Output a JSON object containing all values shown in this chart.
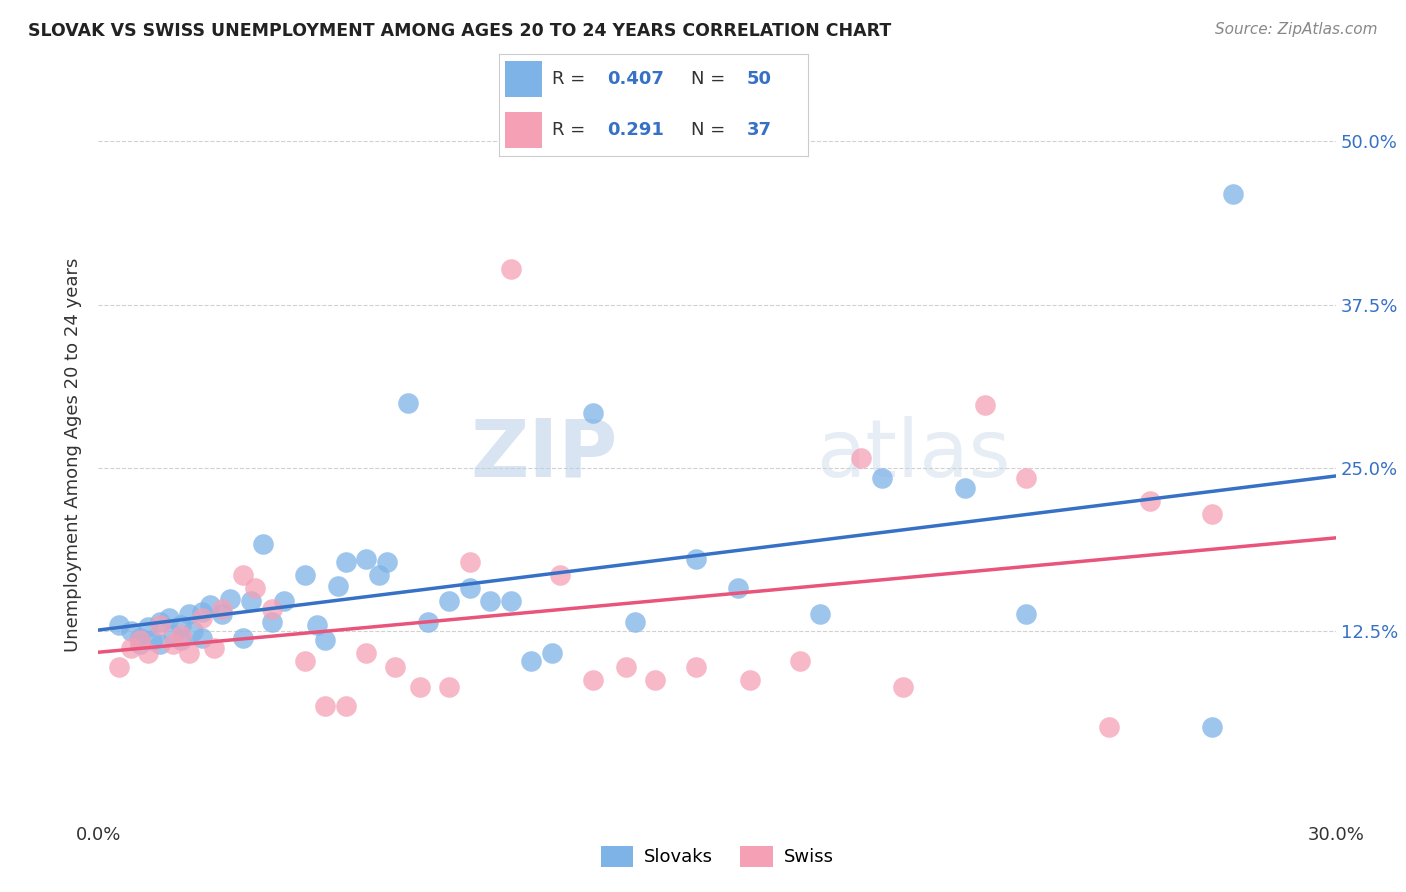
{
  "title": "SLOVAK VS SWISS UNEMPLOYMENT AMONG AGES 20 TO 24 YEARS CORRELATION CHART",
  "source": "Source: ZipAtlas.com",
  "ylabel": "Unemployment Among Ages 20 to 24 years",
  "xlim": [
    0.0,
    0.3
  ],
  "ylim": [
    -0.02,
    0.54
  ],
  "xticks": [
    0.0,
    0.05,
    0.1,
    0.15,
    0.2,
    0.25,
    0.3
  ],
  "xtick_labels": [
    "0.0%",
    "",
    "",
    "",
    "",
    "",
    "30.0%"
  ],
  "ytick_labels": [
    "",
    "12.5%",
    "25.0%",
    "37.5%",
    "50.0%"
  ],
  "yticks": [
    0.0,
    0.125,
    0.25,
    0.375,
    0.5
  ],
  "blue_color": "#7EB3E8",
  "pink_color": "#F5A0B5",
  "blue_line_color": "#3671C6",
  "pink_line_color": "#E8547A",
  "legend_r1": "0.407",
  "legend_n1": "50",
  "legend_r2": "0.291",
  "legend_n2": "37",
  "watermark_zip": "ZIP",
  "watermark_atlas": "atlas",
  "blue_scatter_x": [
    0.005,
    0.008,
    0.01,
    0.01,
    0.012,
    0.013,
    0.015,
    0.015,
    0.017,
    0.018,
    0.02,
    0.02,
    0.022,
    0.023,
    0.025,
    0.025,
    0.027,
    0.03,
    0.032,
    0.035,
    0.037,
    0.04,
    0.042,
    0.045,
    0.05,
    0.053,
    0.055,
    0.058,
    0.06,
    0.065,
    0.068,
    0.07,
    0.075,
    0.08,
    0.085,
    0.09,
    0.095,
    0.1,
    0.105,
    0.11,
    0.12,
    0.13,
    0.145,
    0.155,
    0.175,
    0.19,
    0.21,
    0.225,
    0.27,
    0.275
  ],
  "blue_scatter_y": [
    0.13,
    0.125,
    0.12,
    0.115,
    0.128,
    0.118,
    0.132,
    0.115,
    0.135,
    0.122,
    0.13,
    0.118,
    0.138,
    0.125,
    0.14,
    0.12,
    0.145,
    0.138,
    0.15,
    0.12,
    0.148,
    0.192,
    0.132,
    0.148,
    0.168,
    0.13,
    0.118,
    0.16,
    0.178,
    0.18,
    0.168,
    0.178,
    0.3,
    0.132,
    0.148,
    0.158,
    0.148,
    0.148,
    0.102,
    0.108,
    0.292,
    0.132,
    0.18,
    0.158,
    0.138,
    0.242,
    0.235,
    0.138,
    0.052,
    0.46
  ],
  "pink_scatter_x": [
    0.005,
    0.008,
    0.01,
    0.012,
    0.015,
    0.018,
    0.02,
    0.022,
    0.025,
    0.028,
    0.03,
    0.035,
    0.038,
    0.042,
    0.05,
    0.055,
    0.06,
    0.065,
    0.072,
    0.078,
    0.085,
    0.09,
    0.1,
    0.112,
    0.12,
    0.128,
    0.135,
    0.145,
    0.158,
    0.17,
    0.185,
    0.195,
    0.215,
    0.225,
    0.245,
    0.255,
    0.27
  ],
  "pink_scatter_y": [
    0.098,
    0.112,
    0.118,
    0.108,
    0.13,
    0.115,
    0.122,
    0.108,
    0.135,
    0.112,
    0.142,
    0.168,
    0.158,
    0.142,
    0.102,
    0.068,
    0.068,
    0.108,
    0.098,
    0.082,
    0.082,
    0.178,
    0.402,
    0.168,
    0.088,
    0.098,
    0.088,
    0.098,
    0.088,
    0.102,
    0.258,
    0.082,
    0.298,
    0.242,
    0.052,
    0.225,
    0.215
  ]
}
